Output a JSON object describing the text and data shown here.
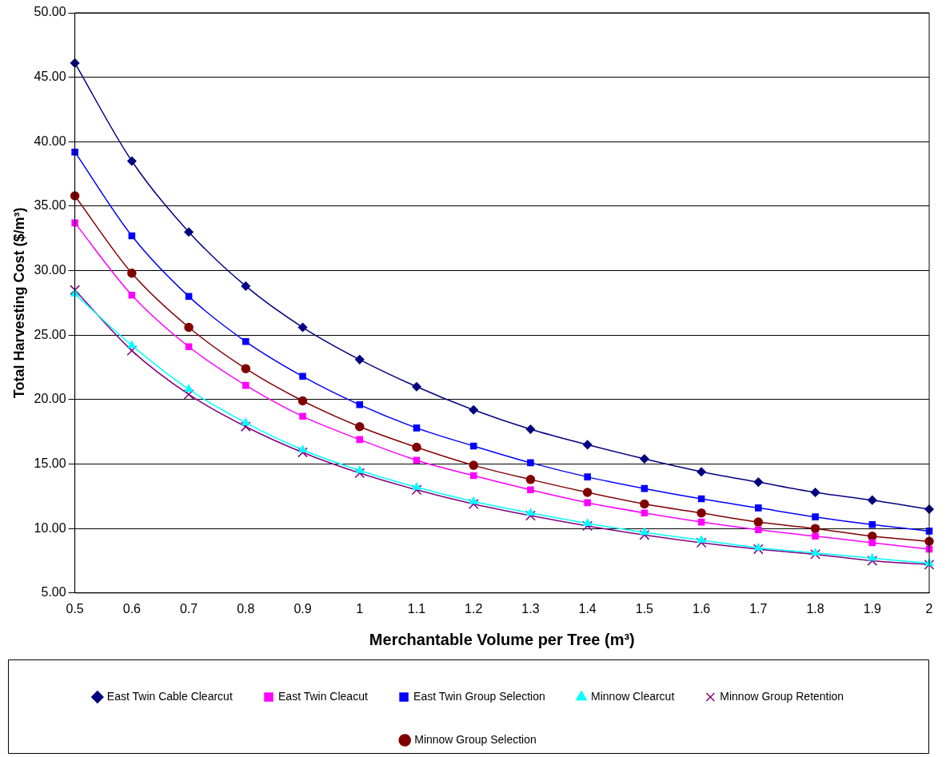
{
  "chart_data": {
    "type": "line",
    "xlabel": "Merchantable Volume per Tree (m³)",
    "ylabel": "Total Harvesting Cost ($/m³)",
    "categories": [
      "0.5",
      "0.6",
      "0.7",
      "0.8",
      "0.9",
      "1",
      "1.1",
      "1.2",
      "1.3",
      "1.4",
      "1.5",
      "1.6",
      "1.7",
      "1.8",
      "1.9",
      "2"
    ],
    "ylim": [
      5,
      50
    ],
    "yticks": [
      {
        "value": 5,
        "label": "5.00"
      },
      {
        "value": 10,
        "label": "10.00"
      },
      {
        "value": 15,
        "label": "15.00"
      },
      {
        "value": 20,
        "label": "20.00"
      },
      {
        "value": 25,
        "label": "25.00"
      },
      {
        "value": 30,
        "label": "30.00"
      },
      {
        "value": 35,
        "label": "35.00"
      },
      {
        "value": 40,
        "label": "40.00"
      },
      {
        "value": 45,
        "label": "45.00"
      },
      {
        "value": 50,
        "label": "50.00"
      }
    ],
    "grid": "y",
    "legend": "bottom",
    "line_style": "solid",
    "series": [
      {
        "name": "East Twin Cable Clearcut",
        "color": "#000080",
        "marker": "diamond",
        "values": [
          46.1,
          38.5,
          33.0,
          28.8,
          25.6,
          23.1,
          21.0,
          19.2,
          17.7,
          16.5,
          15.4,
          14.4,
          13.6,
          12.8,
          12.2,
          11.5
        ]
      },
      {
        "name": "East Twin Cleacut",
        "color": "#ff00ff",
        "marker": "square",
        "values": [
          33.7,
          28.1,
          24.1,
          21.1,
          18.7,
          16.9,
          15.3,
          14.1,
          13.0,
          12.0,
          11.2,
          10.5,
          9.9,
          9.4,
          8.9,
          8.4
        ]
      },
      {
        "name": "East Twin Group Selection",
        "color": "#0000ff",
        "marker": "square",
        "values": [
          39.2,
          32.7,
          28.0,
          24.5,
          21.8,
          19.6,
          17.8,
          16.4,
          15.1,
          14.0,
          13.1,
          12.3,
          11.6,
          10.9,
          10.3,
          9.8
        ]
      },
      {
        "name": "Minnow Clearcut",
        "color": "#00ffff",
        "marker": "triangle",
        "values": [
          28.2,
          24.2,
          20.8,
          18.2,
          16.1,
          14.5,
          13.2,
          12.1,
          11.2,
          10.4,
          9.7,
          9.1,
          8.5,
          8.1,
          7.7,
          7.3
        ]
      },
      {
        "name": "Minnow Group Retention",
        "color": "#800080",
        "marker": "cross",
        "values": [
          28.5,
          23.8,
          20.4,
          17.9,
          15.9,
          14.3,
          13.0,
          11.9,
          11.0,
          10.2,
          9.5,
          8.9,
          8.4,
          8.0,
          7.5,
          7.2
        ]
      },
      {
        "name": "Minnow Group Selection",
        "color": "#800000",
        "marker": "circle",
        "values": [
          35.8,
          29.8,
          25.6,
          22.4,
          19.9,
          17.9,
          16.3,
          14.9,
          13.8,
          12.8,
          11.9,
          11.2,
          10.5,
          10.0,
          9.4,
          9.0
        ]
      }
    ]
  }
}
